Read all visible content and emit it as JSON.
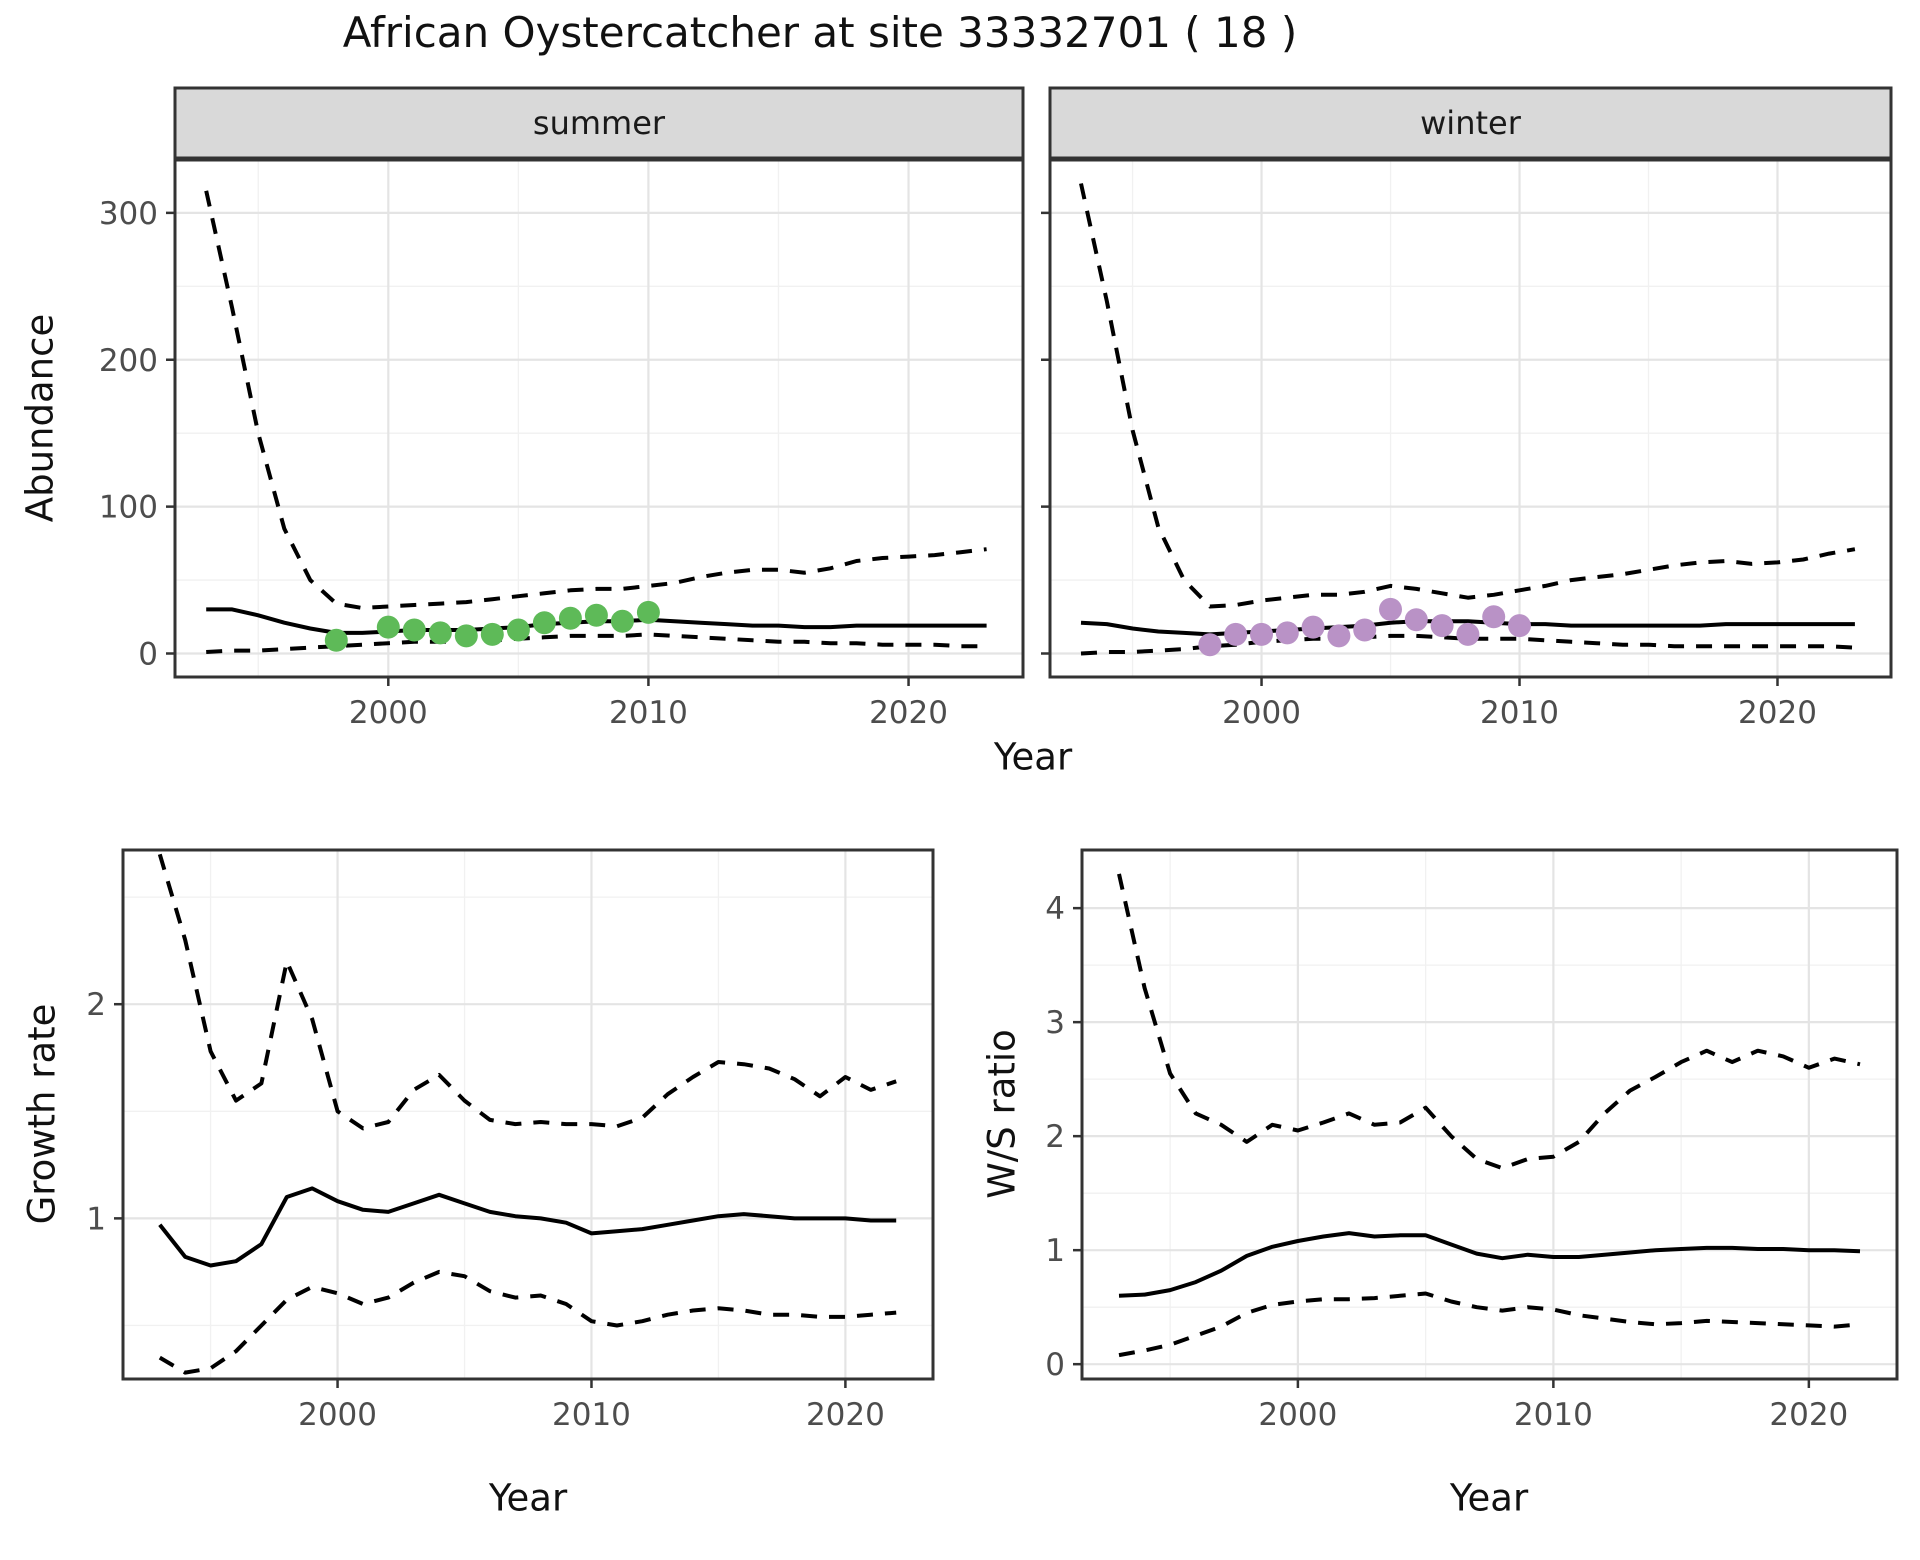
{
  "title": "African Oystercatcher at site 33332701 ( 18 )",
  "colors": {
    "summer_point": "#5EBA58",
    "winter_point": "#B992C6",
    "line": "#000000",
    "strip_fill": "#D9D9D9",
    "panel_border": "#333333",
    "grid_major": "#E4E4E4",
    "grid_minor": "#F1F1F1",
    "tick_label": "#4D4D4D",
    "axis_title": "#111111"
  },
  "chart_data": [
    {
      "type": "line",
      "facet": "summer",
      "ylabel": "Abundance",
      "xlabel": "Year",
      "x_domain": [
        1991.8,
        2024.4
      ],
      "y_domain": [
        -16,
        336
      ],
      "x_ticks": [
        2000,
        2010,
        2020
      ],
      "x_minor": [
        1995,
        2005,
        2015
      ],
      "y_ticks": [
        0,
        100,
        200,
        300
      ],
      "y_minor": [
        50,
        150,
        250
      ],
      "x": [
        1993,
        1994,
        1995,
        1996,
        1997,
        1998,
        1999,
        2000,
        2001,
        2002,
        2003,
        2004,
        2005,
        2006,
        2007,
        2008,
        2009,
        2010,
        2011,
        2012,
        2013,
        2014,
        2015,
        2016,
        2017,
        2018,
        2019,
        2020,
        2021,
        2022,
        2023
      ],
      "series": [
        {
          "name": "fit",
          "style": "solid",
          "values": [
            30,
            30,
            26,
            21,
            17,
            14,
            14,
            15,
            16,
            16,
            16,
            17,
            18,
            20,
            21,
            22,
            22,
            23,
            22,
            21,
            20,
            19,
            19,
            18,
            18,
            19,
            19,
            19,
            19,
            19,
            19
          ]
        },
        {
          "name": "upper_ci",
          "style": "dashed",
          "values": [
            315,
            235,
            150,
            85,
            50,
            34,
            31,
            32,
            33,
            34,
            35,
            37,
            39,
            41,
            43,
            44,
            44,
            46,
            48,
            52,
            55,
            57,
            57,
            55,
            58,
            63,
            65,
            66,
            67,
            69,
            71
          ]
        },
        {
          "name": "lower_ci",
          "style": "dashed",
          "values": [
            1,
            2,
            2,
            3,
            4,
            5,
            6,
            7,
            8,
            8,
            8,
            9,
            10,
            11,
            12,
            12,
            12,
            13,
            12,
            11,
            10,
            9,
            8,
            8,
            7,
            7,
            6,
            6,
            6,
            5,
            5
          ]
        }
      ],
      "points": {
        "years": [
          1998,
          2000,
          2001,
          2002,
          2003,
          2004,
          2005,
          2006,
          2007,
          2008,
          2009,
          2010
        ],
        "values": [
          9,
          18,
          16,
          14,
          12,
          13,
          16,
          21,
          24,
          26,
          22,
          28
        ],
        "color": "#5EBA58"
      }
    },
    {
      "type": "line",
      "facet": "winter",
      "ylabel": "",
      "xlabel": "",
      "x_domain": [
        1991.8,
        2024.4
      ],
      "y_domain": [
        -16,
        336
      ],
      "x_ticks": [
        2000,
        2010,
        2020
      ],
      "x_minor": [
        1995,
        2005,
        2015
      ],
      "y_ticks": [
        0,
        100,
        200,
        300
      ],
      "y_minor": [
        50,
        150,
        250
      ],
      "x": [
        1993,
        1994,
        1995,
        1996,
        1997,
        1998,
        1999,
        2000,
        2001,
        2002,
        2003,
        2004,
        2005,
        2006,
        2007,
        2008,
        2009,
        2010,
        2011,
        2012,
        2013,
        2014,
        2015,
        2016,
        2017,
        2018,
        2019,
        2020,
        2021,
        2022,
        2023
      ],
      "series": [
        {
          "name": "fit",
          "style": "solid",
          "values": [
            21,
            20,
            17,
            15,
            14,
            13,
            14,
            15,
            16,
            17,
            18,
            19,
            21,
            22,
            22,
            22,
            21,
            20,
            20,
            19,
            19,
            19,
            19,
            19,
            19,
            20,
            20,
            20,
            20,
            20,
            20
          ]
        },
        {
          "name": "upper_ci",
          "style": "dashed",
          "values": [
            320,
            240,
            152,
            86,
            50,
            32,
            33,
            36,
            38,
            40,
            40,
            42,
            46,
            44,
            41,
            38,
            40,
            43,
            46,
            50,
            52,
            54,
            57,
            60,
            62,
            63,
            61,
            62,
            64,
            68,
            71
          ]
        },
        {
          "name": "lower_ci",
          "style": "dashed",
          "values": [
            0,
            1,
            1,
            2,
            3,
            5,
            6,
            8,
            9,
            10,
            10,
            11,
            12,
            12,
            11,
            10,
            10,
            10,
            9,
            8,
            7,
            6,
            6,
            5,
            5,
            5,
            5,
            5,
            5,
            5,
            4
          ]
        }
      ],
      "points": {
        "years": [
          1998,
          1999,
          2000,
          2001,
          2002,
          2003,
          2004,
          2005,
          2006,
          2007,
          2008,
          2009,
          2010
        ],
        "values": [
          6,
          13,
          13,
          14,
          18,
          12,
          16,
          30,
          23,
          19,
          13,
          25,
          19
        ],
        "color": "#B992C6"
      }
    },
    {
      "type": "line",
      "facet": "",
      "ylabel": "Growth rate",
      "xlabel": "Year",
      "x_domain": [
        1991.55,
        2023.45
      ],
      "y_domain": [
        0.25,
        2.72
      ],
      "x_ticks": [
        2000,
        2010,
        2020
      ],
      "x_minor": [
        1995,
        2005,
        2015
      ],
      "y_ticks": [
        1,
        2
      ],
      "y_minor": [
        0.5,
        1.5,
        2.5
      ],
      "x": [
        1993,
        1994,
        1995,
        1996,
        1997,
        1998,
        1999,
        2000,
        2001,
        2002,
        2003,
        2004,
        2005,
        2006,
        2007,
        2008,
        2009,
        2010,
        2011,
        2012,
        2013,
        2014,
        2015,
        2016,
        2017,
        2018,
        2019,
        2020,
        2021,
        2022
      ],
      "series": [
        {
          "name": "fit",
          "style": "solid",
          "values": [
            0.97,
            0.82,
            0.78,
            0.8,
            0.88,
            1.1,
            1.14,
            1.08,
            1.04,
            1.03,
            1.07,
            1.11,
            1.07,
            1.03,
            1.01,
            1.0,
            0.98,
            0.93,
            0.94,
            0.95,
            0.97,
            0.99,
            1.01,
            1.02,
            1.01,
            1.0,
            1.0,
            1.0,
            0.99,
            0.99
          ]
        },
        {
          "name": "upper_ci",
          "style": "dashed",
          "values": [
            2.7,
            2.3,
            1.78,
            1.55,
            1.63,
            2.2,
            1.93,
            1.5,
            1.42,
            1.45,
            1.6,
            1.67,
            1.55,
            1.46,
            1.44,
            1.45,
            1.44,
            1.44,
            1.43,
            1.47,
            1.58,
            1.66,
            1.73,
            1.72,
            1.7,
            1.65,
            1.57,
            1.66,
            1.6,
            1.64
          ]
        },
        {
          "name": "lower_ci",
          "style": "dashed",
          "values": [
            0.35,
            0.28,
            0.3,
            0.38,
            0.5,
            0.62,
            0.68,
            0.65,
            0.6,
            0.63,
            0.7,
            0.75,
            0.73,
            0.66,
            0.63,
            0.64,
            0.6,
            0.52,
            0.5,
            0.52,
            0.55,
            0.57,
            0.58,
            0.57,
            0.55,
            0.55,
            0.54,
            0.54,
            0.55,
            0.56
          ]
        }
      ],
      "points": null
    },
    {
      "type": "line",
      "facet": "",
      "ylabel": "W/S ratio",
      "xlabel": "Year",
      "x_domain": [
        1991.55,
        2023.45
      ],
      "y_domain": [
        -0.13,
        4.51
      ],
      "x_ticks": [
        2000,
        2010,
        2020
      ],
      "x_minor": [
        1995,
        2005,
        2015
      ],
      "y_ticks": [
        0,
        1,
        2,
        3,
        4
      ],
      "y_minor": [
        0.5,
        1.5,
        2.5,
        3.5
      ],
      "x": [
        1993,
        1994,
        1995,
        1996,
        1997,
        1998,
        1999,
        2000,
        2001,
        2002,
        2003,
        2004,
        2005,
        2006,
        2007,
        2008,
        2009,
        2010,
        2011,
        2012,
        2013,
        2014,
        2015,
        2016,
        2017,
        2018,
        2019,
        2020,
        2021,
        2022
      ],
      "series": [
        {
          "name": "fit",
          "style": "solid",
          "values": [
            0.6,
            0.61,
            0.65,
            0.72,
            0.82,
            0.95,
            1.03,
            1.08,
            1.12,
            1.15,
            1.12,
            1.13,
            1.13,
            1.05,
            0.97,
            0.93,
            0.96,
            0.94,
            0.94,
            0.96,
            0.98,
            1.0,
            1.01,
            1.02,
            1.02,
            1.01,
            1.01,
            1.0,
            1.0,
            0.99
          ]
        },
        {
          "name": "upper_ci",
          "style": "dashed",
          "values": [
            4.3,
            3.3,
            2.55,
            2.2,
            2.1,
            1.95,
            2.1,
            2.05,
            2.12,
            2.2,
            2.1,
            2.12,
            2.25,
            2.0,
            1.8,
            1.72,
            1.8,
            1.82,
            1.95,
            2.2,
            2.4,
            2.52,
            2.65,
            2.75,
            2.65,
            2.75,
            2.7,
            2.6,
            2.68,
            2.63
          ]
        },
        {
          "name": "lower_ci",
          "style": "dashed",
          "values": [
            0.08,
            0.12,
            0.17,
            0.25,
            0.33,
            0.45,
            0.52,
            0.55,
            0.57,
            0.57,
            0.58,
            0.6,
            0.62,
            0.55,
            0.5,
            0.47,
            0.5,
            0.48,
            0.43,
            0.4,
            0.37,
            0.35,
            0.36,
            0.38,
            0.37,
            0.36,
            0.35,
            0.34,
            0.33,
            0.35
          ]
        }
      ],
      "points": null
    }
  ]
}
